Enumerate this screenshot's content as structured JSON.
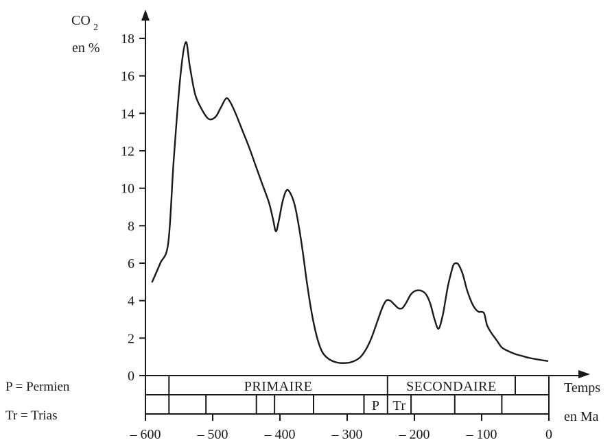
{
  "chart_data": {
    "type": "line",
    "title": "",
    "ylabel_lines": [
      "CO",
      "2",
      "en %"
    ],
    "xlabel_lines": [
      "Temps",
      "en Ma"
    ],
    "ylim": [
      0,
      18
    ],
    "xlim": [
      -600,
      0
    ],
    "yticks": [
      0,
      2,
      4,
      6,
      8,
      10,
      12,
      14,
      16,
      18
    ],
    "xticks": [
      -600,
      -500,
      -400,
      -300,
      -200,
      -100,
      0
    ],
    "xtick_labels": [
      "– 600",
      "– 500",
      "– 400",
      "– 300",
      "– 200",
      "– 100",
      "0"
    ],
    "grid": false,
    "series": [
      {
        "x": [
          -590,
          -578,
          -566,
          -558,
          -548,
          -540,
          -534,
          -526,
          -516,
          -506,
          -496,
          -488,
          -480,
          -474,
          -466,
          -456,
          -446,
          -436,
          -426,
          -416,
          -410,
          -406,
          -402,
          -396,
          -390,
          -384,
          -378,
          -372,
          -366,
          -360,
          -354,
          -348,
          -342,
          -336,
          -328,
          -320,
          -312,
          -304,
          -296,
          -288,
          -280,
          -272,
          -264,
          -256,
          -248,
          -242,
          -236,
          -230,
          -224,
          -218,
          -212,
          -206,
          -200,
          -194,
          -188,
          -182,
          -176,
          -170,
          -164,
          -158,
          -154,
          -150,
          -146,
          -142,
          -138,
          -134,
          -128,
          -122,
          -116,
          -112,
          -108,
          -104,
          -100,
          -96,
          -92,
          -86,
          -80,
          -76,
          -70,
          -60,
          -50,
          -40,
          -30,
          -20,
          -10,
          -2
        ],
        "values": [
          5.0,
          6.0,
          7.1,
          11.5,
          16.0,
          17.8,
          16.5,
          15.0,
          14.2,
          13.7,
          13.8,
          14.3,
          14.8,
          14.6,
          14.0,
          13.1,
          12.2,
          11.2,
          10.2,
          9.2,
          8.3,
          7.7,
          8.2,
          9.3,
          9.9,
          9.7,
          9.1,
          8.0,
          6.6,
          5.0,
          3.6,
          2.5,
          1.7,
          1.2,
          0.9,
          0.75,
          0.68,
          0.67,
          0.7,
          0.8,
          1.0,
          1.4,
          2.0,
          2.8,
          3.6,
          4.0,
          4.0,
          3.8,
          3.6,
          3.6,
          3.9,
          4.3,
          4.5,
          4.55,
          4.5,
          4.3,
          3.8,
          3.0,
          2.5,
          3.2,
          4.0,
          4.8,
          5.4,
          5.9,
          6.0,
          5.9,
          5.4,
          4.6,
          4.0,
          3.7,
          3.5,
          3.4,
          3.4,
          3.3,
          2.7,
          2.3,
          2.0,
          1.8,
          1.5,
          1.3,
          1.15,
          1.05,
          0.95,
          0.88,
          0.82,
          0.78
        ]
      }
    ],
    "timescale": {
      "eras": [
        {
          "label": "",
          "from": -600,
          "to": -565
        },
        {
          "label": "PRIMAIRE",
          "from": -565,
          "to": -240
        },
        {
          "label": "SECONDAIRE",
          "from": -240,
          "to": -50
        },
        {
          "label": "",
          "from": -50,
          "to": 0
        }
      ],
      "periods": [
        {
          "label": "",
          "from": -600,
          "to": -565
        },
        {
          "label": "",
          "from": -565,
          "to": -510
        },
        {
          "label": "",
          "from": -510,
          "to": -435
        },
        {
          "label": "",
          "from": -435,
          "to": -408
        },
        {
          "label": "",
          "from": -408,
          "to": -350
        },
        {
          "label": "",
          "from": -350,
          "to": -275
        },
        {
          "label": "P",
          "from": -275,
          "to": -240
        },
        {
          "label": "Tr",
          "from": -240,
          "to": -205
        },
        {
          "label": "",
          "from": -205,
          "to": -140
        },
        {
          "label": "",
          "from": -140,
          "to": -70
        },
        {
          "label": "",
          "from": -70,
          "to": 0
        }
      ]
    },
    "legend": [
      {
        "text": "P = Permien"
      },
      {
        "text": "Tr = Trias"
      }
    ]
  }
}
